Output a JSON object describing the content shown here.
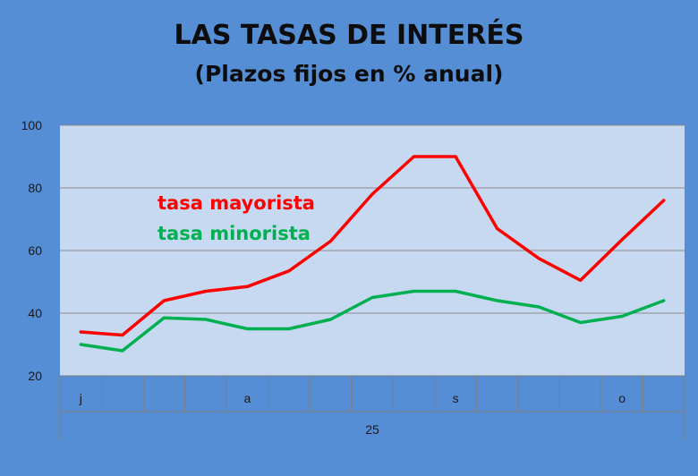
{
  "chart_data": {
    "type": "line",
    "title": "LAS TASAS DE INTERÉS",
    "subtitle": "(Plazos fijos en % anual)",
    "x": [
      1,
      2,
      3,
      4,
      5,
      6,
      7,
      8,
      9,
      10,
      11,
      12,
      13,
      14,
      15
    ],
    "month_labels": [
      {
        "label": "j",
        "at": 1
      },
      {
        "label": "a",
        "at": 5
      },
      {
        "label": "s",
        "at": 10
      },
      {
        "label": "o",
        "at": 14
      }
    ],
    "year_label": "25",
    "ylim": [
      20,
      100
    ],
    "yticks": [
      20,
      40,
      60,
      80,
      100
    ],
    "grid": true,
    "legend_position": "top-left",
    "series": [
      {
        "name": "tasa mayorista",
        "color": "#ff0000",
        "values": [
          34,
          33,
          44,
          47,
          48.5,
          53.5,
          63,
          78,
          90,
          90,
          67,
          57.5,
          50.5,
          63.5,
          76
        ]
      },
      {
        "name": "tasa minorista",
        "color": "#00b050",
        "values": [
          30,
          28,
          38.5,
          38,
          35,
          35,
          38,
          45,
          47,
          47,
          44,
          42,
          37,
          39,
          44
        ]
      }
    ]
  }
}
